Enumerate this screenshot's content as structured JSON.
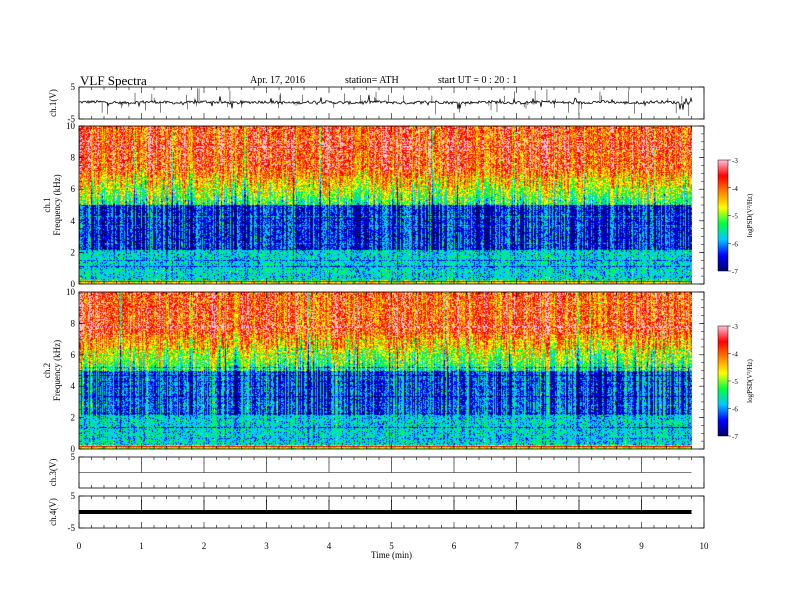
{
  "header": {
    "title": "VLF  Spectra",
    "date": "Apr. 17, 2016",
    "station": "station= ATH",
    "start": "start  UT =    0  : 20 : 1"
  },
  "colors": {
    "waveform": "#000000",
    "spectrogram_scale": [
      "#000066",
      "#0000ff",
      "#00c8ff",
      "#00ff40",
      "#ffff00",
      "#ff8000",
      "#ff0000",
      "#ffc0d8"
    ]
  },
  "chart_data": [
    {
      "type": "line",
      "name": "ch1-waveform",
      "ylabel": "ch.1(V)",
      "yticks": [
        "5",
        "-5"
      ],
      "ylim": [
        -5,
        5
      ],
      "xlim": [
        0,
        10
      ],
      "x_end": 9.8,
      "baseline": 0.2
    },
    {
      "type": "heatmap",
      "name": "ch1-spectrogram",
      "ylabel": "ch.1\nFrequency (kHz)",
      "ylabel_lines": [
        "ch.1",
        "Frequency (kHz)"
      ],
      "yticks": [
        "0",
        "2",
        "4",
        "6",
        "8",
        "10"
      ],
      "ylim": [
        0,
        10
      ],
      "xlim": [
        0,
        10
      ],
      "x_end": 9.8,
      "colorbar": {
        "label": "logPSD(V²/Hz)",
        "ticks": [
          "-3",
          "-4",
          "-5",
          "-6",
          "-7"
        ],
        "range": [
          -7,
          -3
        ]
      }
    },
    {
      "type": "heatmap",
      "name": "ch2-spectrogram",
      "ylabel": "ch.2\nFrequency (kHz)",
      "ylabel_lines": [
        "ch.2",
        "Frequency (kHz)"
      ],
      "yticks": [
        "0",
        "2",
        "4",
        "6",
        "8",
        "10"
      ],
      "ylim": [
        0,
        10
      ],
      "xlim": [
        0,
        10
      ],
      "x_end": 9.8,
      "colorbar": {
        "label": "logPSD(V²/Hz)",
        "ticks": [
          "-3",
          "-4",
          "-5",
          "-6",
          "-7"
        ],
        "range": [
          -7,
          -3
        ]
      }
    },
    {
      "type": "line",
      "name": "ch3-waveform",
      "ylabel": "ch.3(V)",
      "yticks": [
        "5"
      ],
      "ylim": [
        -5,
        5
      ],
      "xlim": [
        0,
        10
      ],
      "x_end": 9.8,
      "baseline": 0
    },
    {
      "type": "line",
      "name": "ch4-waveform",
      "ylabel": "ch.4(V)",
      "yticks": [
        "5",
        "-5"
      ],
      "ylim": [
        -5,
        5
      ],
      "xlim": [
        0,
        10
      ],
      "x_end": 9.8,
      "baseline": 0
    }
  ],
  "x_axis": {
    "label": "Time  (min)",
    "ticks": [
      "0",
      "1",
      "2",
      "3",
      "4",
      "5",
      "6",
      "7",
      "8",
      "9",
      "10"
    ],
    "range": [
      0,
      10
    ]
  }
}
